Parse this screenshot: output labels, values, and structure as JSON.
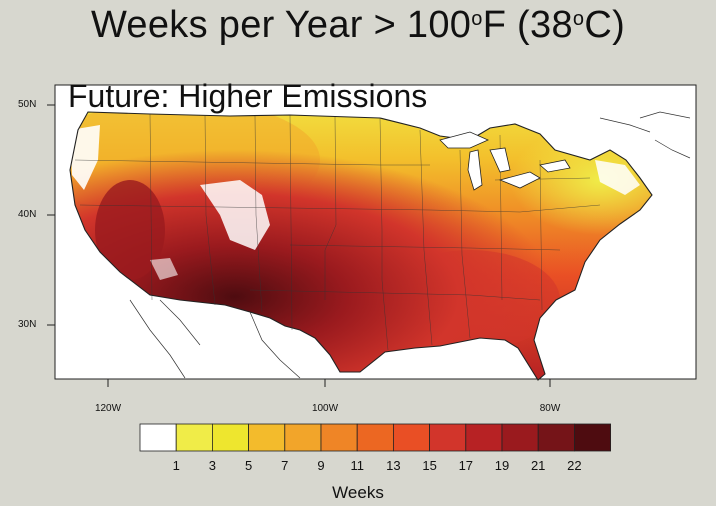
{
  "title": {
    "main": "Weeks per Year > 100",
    "deg1": "o",
    "unit1": "F (38",
    "deg2": "o",
    "unit2": "C)"
  },
  "subtitle": "Future: Higher Emissions",
  "lat_labels": [
    "50N",
    "40N",
    "30N"
  ],
  "lon_labels": [
    "120W",
    "100W",
    "80W"
  ],
  "colorbar": {
    "tick_labels": [
      "1",
      "3",
      "5",
      "7",
      "9",
      "11",
      "13",
      "15",
      "17",
      "19",
      "21",
      "22"
    ],
    "label": "Weeks",
    "colors": [
      "#ffffff",
      "#f0ec48",
      "#eee62e",
      "#f3bb2c",
      "#f2a52a",
      "#ef8526",
      "#ec6722",
      "#e94f25",
      "#d2352b",
      "#b72224",
      "#9a1a1e",
      "#751418",
      "#4e0c10"
    ]
  },
  "colors": {
    "background": "#d7d7cf",
    "ocean": "#ffffff",
    "land_outside": "#ffffff"
  }
}
